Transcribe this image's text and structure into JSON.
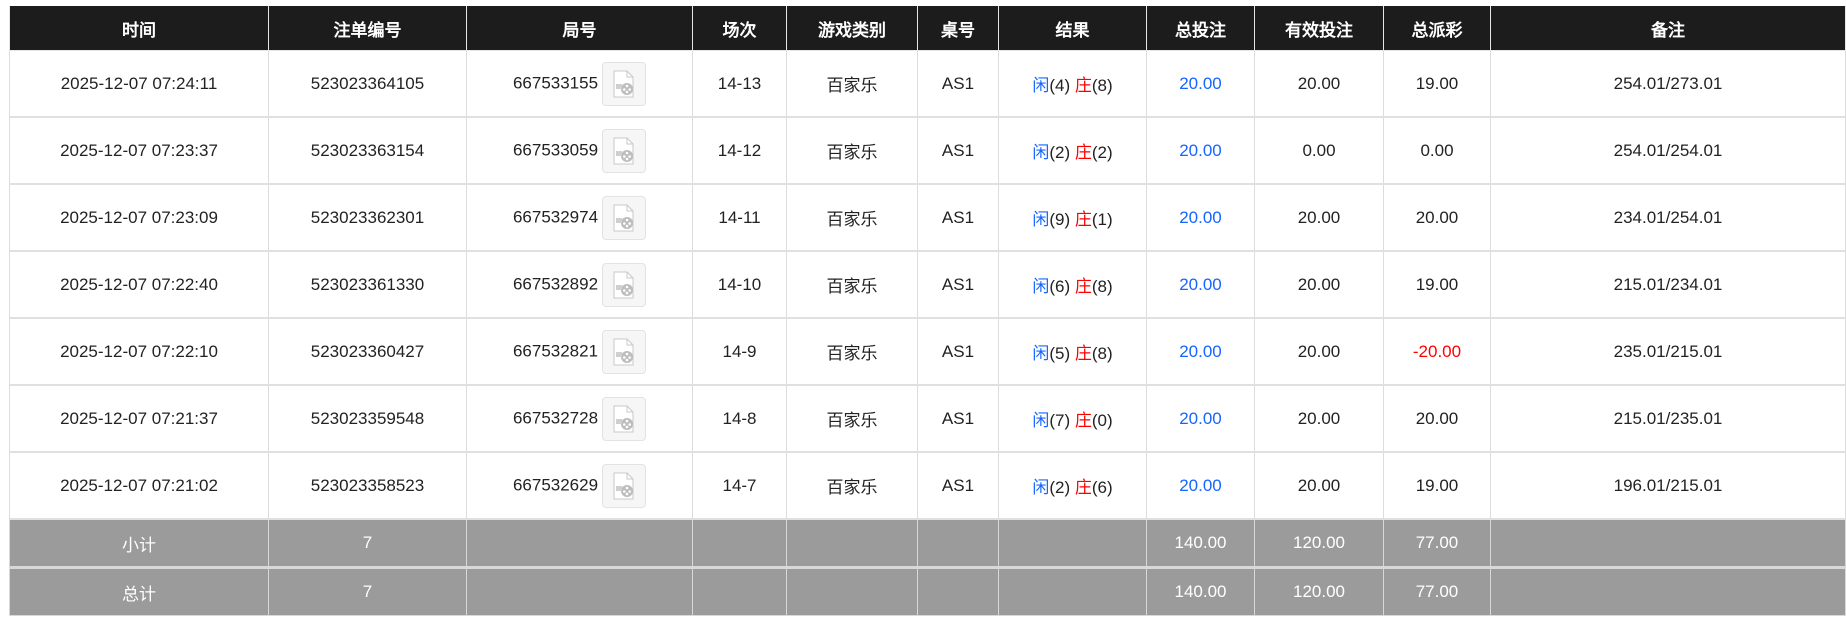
{
  "headers": [
    "时间",
    "注单编号",
    "局号",
    "场次",
    "游戏类别",
    "桌号",
    "结果",
    "总投注",
    "有效投注",
    "总派彩",
    "备注"
  ],
  "rows": [
    {
      "time": "2025-12-07 07:24:11",
      "bet_id": "523023364105",
      "round": "667533155",
      "session": "14-13",
      "game": "百家乐",
      "table": "AS1",
      "player_label": "闲",
      "player": "(4)",
      "banker_label": "庄",
      "banker": "(8)",
      "total_bet": "20.00",
      "valid_bet": "20.00",
      "payout": "19.00",
      "remark": "254.01/273.01"
    },
    {
      "time": "2025-12-07 07:23:37",
      "bet_id": "523023363154",
      "round": "667533059",
      "session": "14-12",
      "game": "百家乐",
      "table": "AS1",
      "player_label": "闲",
      "player": "(2)",
      "banker_label": "庄",
      "banker": "(2)",
      "total_bet": "20.00",
      "valid_bet": "0.00",
      "payout": "0.00",
      "remark": "254.01/254.01"
    },
    {
      "time": "2025-12-07 07:23:09",
      "bet_id": "523023362301",
      "round": "667532974",
      "session": "14-11",
      "game": "百家乐",
      "table": "AS1",
      "player_label": "闲",
      "player": "(9)",
      "banker_label": "庄",
      "banker": "(1)",
      "total_bet": "20.00",
      "valid_bet": "20.00",
      "payout": "20.00",
      "remark": "234.01/254.01"
    },
    {
      "time": "2025-12-07 07:22:40",
      "bet_id": "523023361330",
      "round": "667532892",
      "session": "14-10",
      "game": "百家乐",
      "table": "AS1",
      "player_label": "闲",
      "player": "(6)",
      "banker_label": "庄",
      "banker": "(8)",
      "total_bet": "20.00",
      "valid_bet": "20.00",
      "payout": "19.00",
      "remark": "215.01/234.01"
    },
    {
      "time": "2025-12-07 07:22:10",
      "bet_id": "523023360427",
      "round": "667532821",
      "session": "14-9",
      "game": "百家乐",
      "table": "AS1",
      "player_label": "闲",
      "player": "(5)",
      "banker_label": "庄",
      "banker": "(8)",
      "total_bet": "20.00",
      "valid_bet": "20.00",
      "payout": "-20.00",
      "remark": "235.01/215.01"
    },
    {
      "time": "2025-12-07 07:21:37",
      "bet_id": "523023359548",
      "round": "667532728",
      "session": "14-8",
      "game": "百家乐",
      "table": "AS1",
      "player_label": "闲",
      "player": "(7)",
      "banker_label": "庄",
      "banker": "(0)",
      "total_bet": "20.00",
      "valid_bet": "20.00",
      "payout": "20.00",
      "remark": "215.01/235.01"
    },
    {
      "time": "2025-12-07 07:21:02",
      "bet_id": "523023358523",
      "round": "667532629",
      "session": "14-7",
      "game": "百家乐",
      "table": "AS1",
      "player_label": "闲",
      "player": "(2)",
      "banker_label": "庄",
      "banker": "(6)",
      "total_bet": "20.00",
      "valid_bet": "20.00",
      "payout": "19.00",
      "remark": "196.01/215.01"
    }
  ],
  "subtotal": {
    "label": "小计",
    "count": "7",
    "total_bet": "140.00",
    "valid_bet": "120.00",
    "payout": "77.00"
  },
  "total": {
    "label": "总计",
    "count": "7",
    "total_bet": "140.00",
    "valid_bet": "120.00",
    "payout": "77.00"
  },
  "icons": {
    "replay": "video-replay-icon"
  },
  "colors": {
    "header_bg": "#1c1c1c",
    "player": "#1565ff",
    "banker": "#ff0000",
    "negative": "#ff0000",
    "summary_bg": "#9b9b9b"
  }
}
